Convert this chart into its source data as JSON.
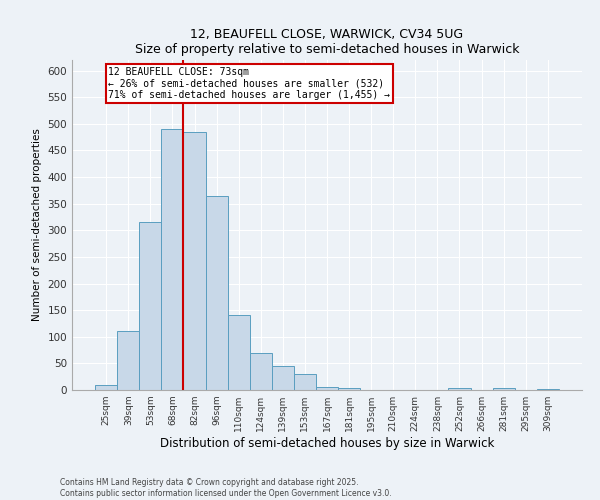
{
  "title1": "12, BEAUFELL CLOSE, WARWICK, CV34 5UG",
  "title2": "Size of property relative to semi-detached houses in Warwick",
  "xlabel": "Distribution of semi-detached houses by size in Warwick",
  "ylabel": "Number of semi-detached properties",
  "categories": [
    "25sqm",
    "39sqm",
    "53sqm",
    "68sqm",
    "82sqm",
    "96sqm",
    "110sqm",
    "124sqm",
    "139sqm",
    "153sqm",
    "167sqm",
    "181sqm",
    "195sqm",
    "210sqm",
    "224sqm",
    "238sqm",
    "252sqm",
    "266sqm",
    "281sqm",
    "295sqm",
    "309sqm"
  ],
  "values": [
    10,
    110,
    315,
    490,
    485,
    365,
    140,
    70,
    45,
    30,
    5,
    3,
    0,
    0,
    0,
    0,
    3,
    0,
    3,
    0,
    2
  ],
  "bar_color": "#c8d8e8",
  "bar_edge_color": "#5a9ec0",
  "vline_color": "#cc0000",
  "annotation_title": "12 BEAUFELL CLOSE: 73sqm",
  "annotation_line1": "← 26% of semi-detached houses are smaller (532)",
  "annotation_line2": "71% of semi-detached houses are larger (1,455) →",
  "annotation_box_color": "white",
  "annotation_box_edge": "#cc0000",
  "ylim": [
    0,
    620
  ],
  "yticks": [
    0,
    50,
    100,
    150,
    200,
    250,
    300,
    350,
    400,
    450,
    500,
    550,
    600
  ],
  "footnote1": "Contains HM Land Registry data © Crown copyright and database right 2025.",
  "footnote2": "Contains public sector information licensed under the Open Government Licence v3.0.",
  "background_color": "#edf2f7",
  "plot_background": "#edf2f7",
  "grid_color": "#ffffff",
  "vline_index": 3.5
}
